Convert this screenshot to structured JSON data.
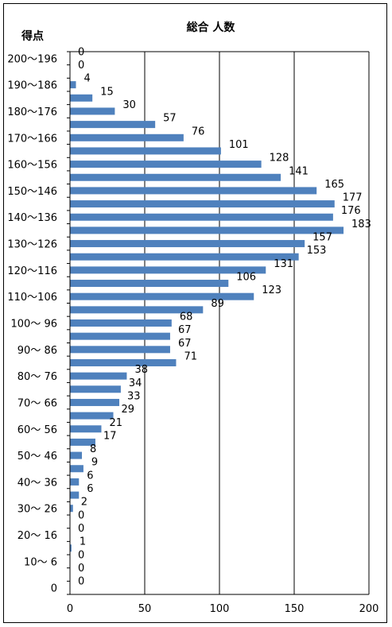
{
  "chart_data": {
    "type": "bar",
    "orientation": "horizontal",
    "title": "総合 人数",
    "ylabel": "得点",
    "xlabel": "",
    "xlim": [
      0,
      200
    ],
    "xticks": [
      0,
      50,
      100,
      150,
      200
    ],
    "grid": true,
    "legend": "none",
    "bar_color": "#4F81BD",
    "category_labels": [
      "200～196",
      "190～186",
      "180～176",
      "170～166",
      "160～156",
      "150～146",
      "140～136",
      "130～126",
      "120～116",
      "110～106",
      "100～ 96",
      "90～ 86",
      "80～ 76",
      "70～ 66",
      "60～ 56",
      "50～ 46",
      "40～ 36",
      "30～ 26",
      "20～ 16",
      "10～ 6",
      "0"
    ],
    "values": [
      0,
      0,
      4,
      15,
      30,
      57,
      76,
      101,
      128,
      141,
      165,
      177,
      176,
      183,
      157,
      153,
      131,
      106,
      123,
      89,
      68,
      67,
      67,
      71,
      38,
      34,
      33,
      29,
      21,
      17,
      8,
      9,
      6,
      6,
      2,
      0,
      0,
      1,
      0,
      0,
      0
    ]
  }
}
